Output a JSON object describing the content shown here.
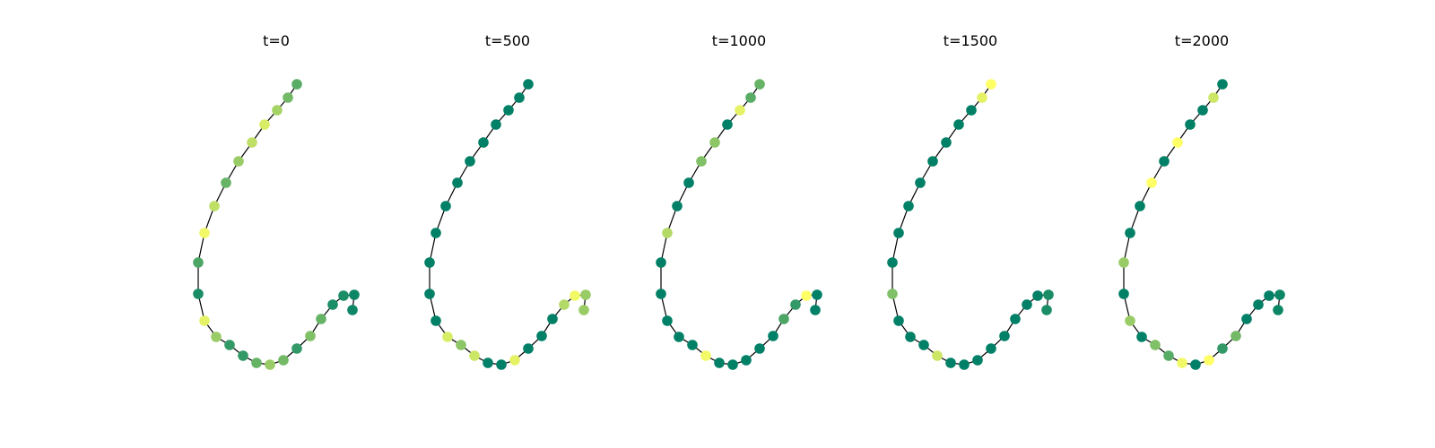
{
  "colormap": {
    "name": "summer",
    "low": "#008066",
    "high": "#ffff66"
  },
  "edge_color": "#000000",
  "panels": [
    {
      "title": "t=0",
      "node_levels": [
        0.35,
        0.45,
        0.65,
        0.85,
        0.75,
        0.6,
        0.4,
        0.75,
        0.95,
        0.3,
        0.1,
        0.9,
        0.6,
        0.2,
        0.2,
        0.4,
        0.6,
        0.45,
        0.2,
        0.5,
        0.4,
        0.1,
        0.1,
        0.05
      ]
    },
    {
      "title": "t=500",
      "node_levels": [
        0.0,
        0.0,
        0.0,
        0.0,
        0.0,
        0.0,
        0.0,
        0.0,
        0.0,
        0.0,
        0.0,
        0.0,
        0.85,
        0.55,
        0.8,
        0.0,
        0.0,
        0.9,
        0.0,
        0.0,
        0.0,
        0.7,
        0.95,
        0.6
      ]
    },
    {
      "title": "t=1000",
      "node_levels": [
        0.4,
        0.35,
        0.9,
        0.0,
        0.55,
        0.5,
        0.0,
        0.0,
        0.7,
        0.0,
        0.0,
        0.0,
        0.0,
        0.0,
        0.95,
        0.0,
        0.0,
        0.0,
        0.0,
        0.0,
        0.3,
        0.2,
        1.0,
        0.0
      ]
    },
    {
      "title": "t=1500",
      "node_levels": [
        1.0,
        0.9,
        0.0,
        0.0,
        0.0,
        0.0,
        0.0,
        0.0,
        0.0,
        0.0,
        0.5,
        0.0,
        0.0,
        0.0,
        0.8,
        0.0,
        0.0,
        0.0,
        0.0,
        0.0,
        0.0,
        0.0,
        0.0,
        0.1
      ]
    },
    {
      "title": "t=2000",
      "node_levels": [
        0.0,
        0.8,
        0.0,
        0.0,
        1.0,
        0.0,
        1.0,
        0.0,
        0.0,
        0.6,
        0.0,
        0.6,
        0.0,
        0.5,
        0.35,
        0.95,
        0.0,
        1.0,
        0.2,
        0.45,
        0.0,
        0.0,
        0.0,
        0.05
      ]
    }
  ]
}
